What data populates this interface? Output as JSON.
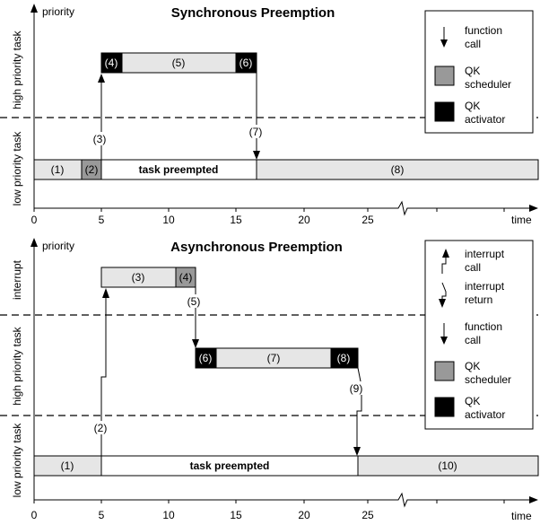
{
  "colors": {
    "light_gray": "#e6e6e6",
    "scheduler_gray": "#999999",
    "activator_black": "#000000",
    "white": "#ffffff",
    "line": "#000000"
  },
  "top_diagram": {
    "title": "Synchronous Preemption",
    "y_axis_label": "priority",
    "x_axis_label": "time",
    "lanes": [
      "high priority task",
      "low priority task"
    ],
    "ticks": [
      "0",
      "5",
      "10",
      "15",
      "20",
      "25"
    ],
    "boxes": {
      "b1": "(1)",
      "b2": "(2)",
      "b3": "task preempted",
      "b4": "(4)",
      "b5": "(5)",
      "b6": "(6)",
      "b8": "(8)"
    },
    "steps": {
      "s3": "(3)",
      "s7": "(7)"
    },
    "legend": {
      "function_call": "function call",
      "scheduler": "QK scheduler",
      "activator": "QK activator"
    }
  },
  "bottom_diagram": {
    "title": "Asynchronous Preemption",
    "y_axis_label": "priority",
    "x_axis_label": "time",
    "lanes": [
      "interrupt",
      "high priority task",
      "low priority task"
    ],
    "ticks": [
      "0",
      "5",
      "10",
      "15",
      "20",
      "25"
    ],
    "boxes": {
      "b1": "(1)",
      "b_tp": "task preempted",
      "b3": "(3)",
      "b4": "(4)",
      "b6": "(6)",
      "b7": "(7)",
      "b8": "(8)",
      "b10": "(10)"
    },
    "steps": {
      "s2": "(2)",
      "s5": "(5)",
      "s9": "(9)"
    },
    "legend": {
      "interrupt_call": "interrupt call",
      "interrupt_return": "interrupt return",
      "function_call": "function call",
      "scheduler": "QK scheduler",
      "activator": "QK activator"
    }
  }
}
